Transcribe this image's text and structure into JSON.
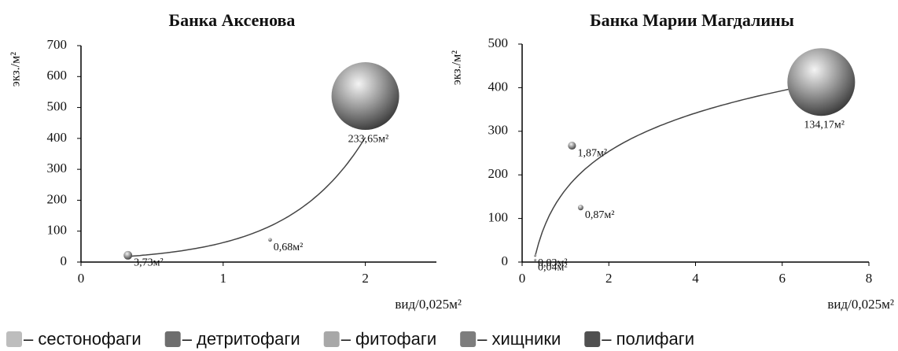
{
  "chart_data": [
    {
      "type": "bubble",
      "title": "Банка Аксенова",
      "x_label": "вид/0,025м²",
      "y_label": "экз./м²",
      "xlim": [
        0,
        2.5
      ],
      "xticks": [
        0,
        1,
        2
      ],
      "ylim": [
        0,
        700
      ],
      "yticks": [
        0,
        100,
        200,
        300,
        400,
        500,
        600,
        700
      ],
      "trendline": "exponential",
      "x": [
        0.33,
        1.33,
        2.0
      ],
      "values": [
        22,
        72,
        537
      ],
      "sizes": [
        3.73,
        0.68,
        233.65
      ],
      "size_labels": [
        "3,73м²",
        "0,68м²",
        "233,65м²"
      ]
    },
    {
      "type": "bubble",
      "title": "Банка Марии Магдалины",
      "x_label": "вид/0,025м²",
      "y_label": "экз./м²",
      "xlim": [
        0,
        8
      ],
      "xticks": [
        0,
        2,
        4,
        6,
        8
      ],
      "ylim": [
        0,
        500
      ],
      "yticks": [
        0,
        100,
        200,
        300,
        400,
        500
      ],
      "trendline": "logarithmic",
      "x": [
        1.15,
        1.35,
        0.3,
        0.3,
        6.9
      ],
      "values": [
        267,
        125,
        15,
        5,
        413
      ],
      "sizes": [
        1.87,
        0.87,
        0.03,
        0.04,
        134.17
      ],
      "size_labels": [
        "1,87м²",
        "0,87м²",
        "0,03м²",
        "0,04м²",
        "134,17м²"
      ]
    }
  ],
  "legend": [
    {
      "label": "– сестонофаги",
      "color": "#bdbdbd"
    },
    {
      "label": "– детритофаги",
      "color": "#6e6e6e"
    },
    {
      "label": "– фитофаги",
      "color": "#a8a8a8"
    },
    {
      "label": "– хищники",
      "color": "#7d7d7d"
    },
    {
      "label": "– полифаги",
      "color": "#505050"
    }
  ]
}
